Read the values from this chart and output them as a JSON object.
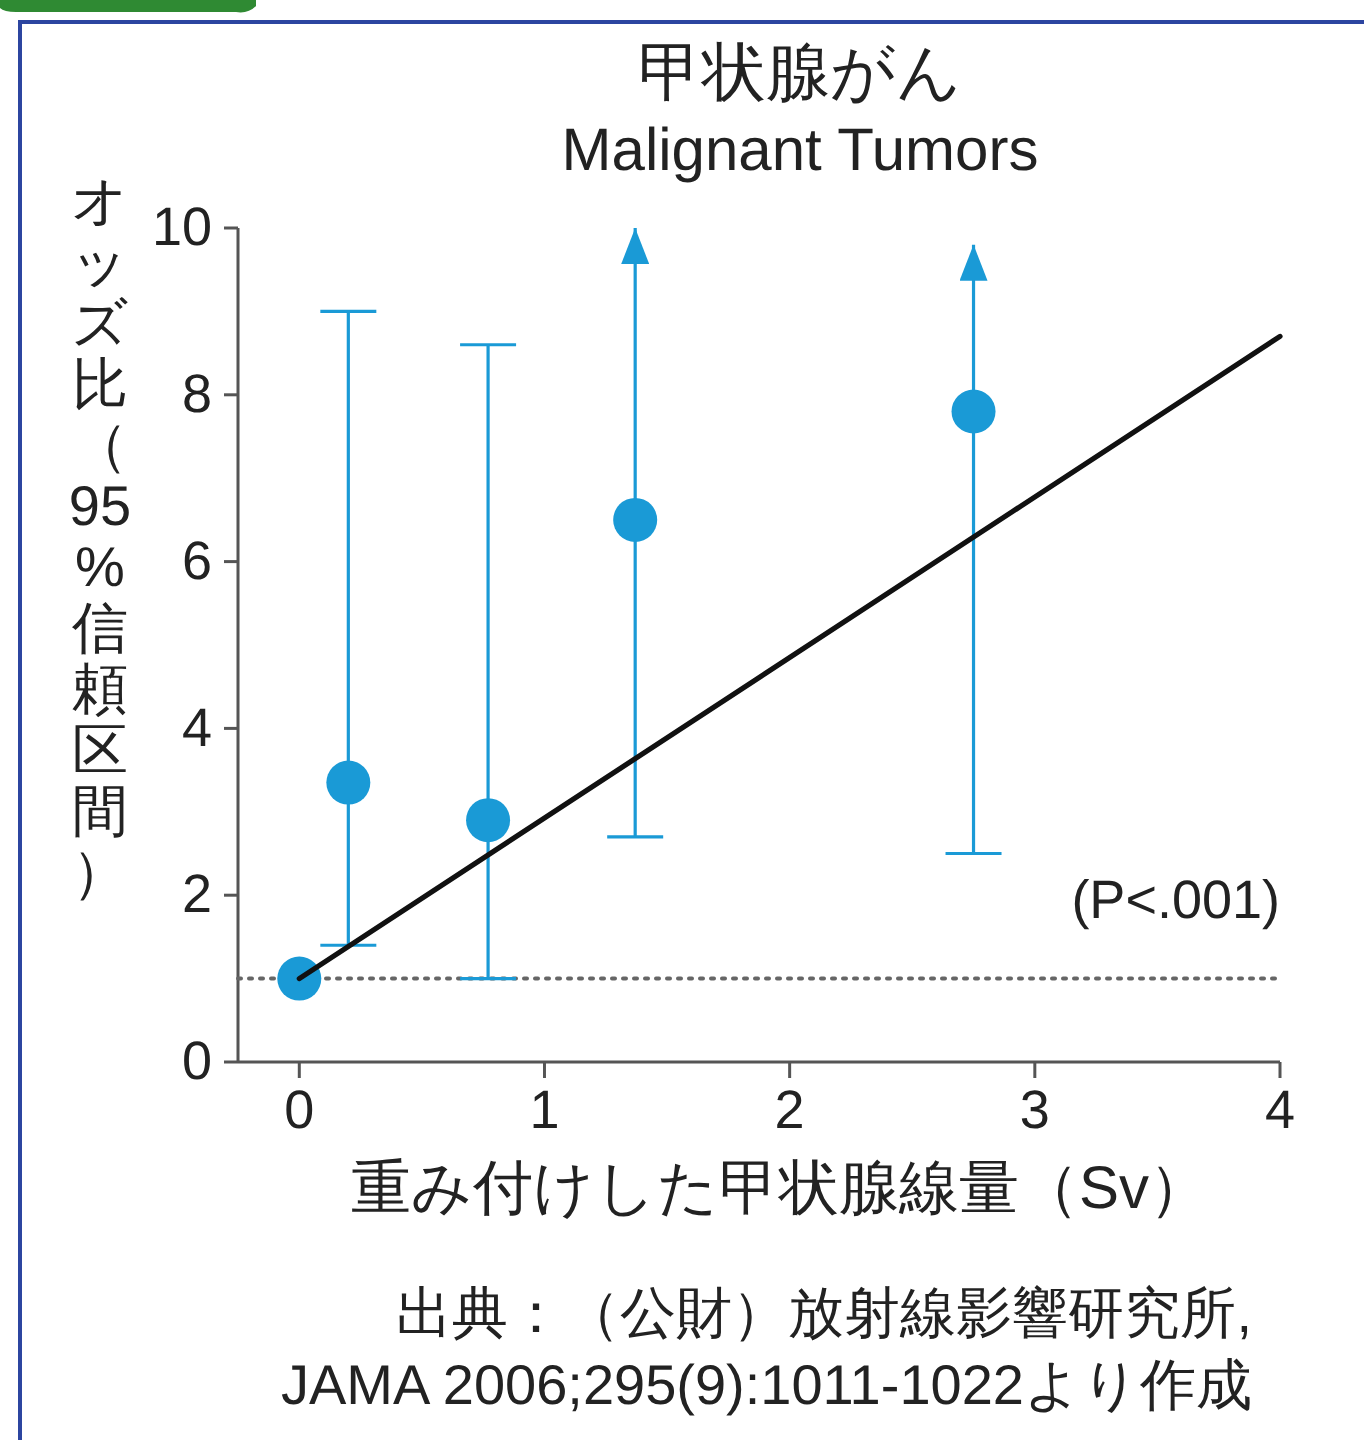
{
  "chart_data": {
    "type": "scatter",
    "title": "甲状腺がん",
    "subtitle": "Malignant Tumors",
    "xlabel": "重み付けした甲状腺線量（Sv）",
    "ylabel": "オッズ比（95%信頼区間）",
    "xlim": [
      -0.25,
      4
    ],
    "xticks": [
      0,
      1,
      2,
      3,
      4
    ],
    "ylim": [
      0,
      10
    ],
    "yticks": [
      0,
      2,
      4,
      6,
      8,
      10
    ],
    "marker": "circle",
    "series": [
      {
        "type": "scatter",
        "color": "#1a9ad6",
        "x": [
          0,
          0.2,
          0.77,
          1.37,
          2.75
        ],
        "values": [
          1,
          3.35,
          2.9,
          6.5,
          7.8
        ],
        "errors": [
          null,
          [
            1.4,
            9.0
          ],
          [
            1.0,
            8.6
          ],
          [
            2.7,
            10
          ],
          [
            2.5,
            9.8
          ]
        ]
      },
      {
        "type": "line",
        "color": "#111111",
        "x": [
          0,
          4
        ],
        "values": [
          1,
          8.7
        ],
        "marker": "none"
      }
    ],
    "ref_lines": [
      {
        "axis": "y",
        "value": 1,
        "color": "#666666",
        "line_style": "dotted"
      }
    ],
    "annotations": [
      "(P<.001)",
      "出典：（公財）放射線影響研究所,\nJAMA 2006;295(9):1011-1022より作成"
    ]
  }
}
